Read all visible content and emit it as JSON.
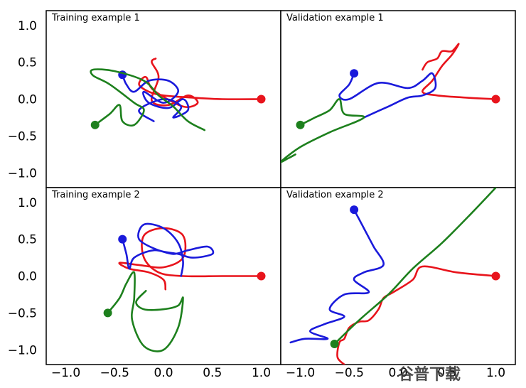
{
  "chart_data": [
    {
      "type": "line",
      "title": "Training example 1",
      "xlim": [
        -1.2,
        1.2
      ],
      "ylim": [
        -1.2,
        1.2
      ],
      "series": [
        {
          "color": "#e8141c",
          "points": [
            [
              1.0,
              0.0
            ],
            [
              0.6,
              0.0
            ],
            [
              0.3,
              0.02
            ],
            [
              0.0,
              0.05
            ],
            [
              -0.15,
              0.1
            ],
            [
              -0.25,
              0.2
            ],
            [
              -0.18,
              0.3
            ],
            [
              -0.1,
              0.12
            ],
            [
              0.2,
              -0.1
            ],
            [
              0.35,
              -0.05
            ],
            [
              0.25,
              0.05
            ],
            [
              0.05,
              -0.08
            ],
            [
              -0.12,
              -0.02
            ],
            [
              -0.05,
              0.3
            ],
            [
              -0.12,
              0.5
            ],
            [
              -0.08,
              0.55
            ]
          ]
        },
        {
          "color": "#1a1adb",
          "points": [
            [
              -0.42,
              0.33
            ],
            [
              -0.38,
              0.2
            ],
            [
              -0.3,
              0.1
            ],
            [
              -0.15,
              0.25
            ],
            [
              0.05,
              0.25
            ],
            [
              0.15,
              0.1
            ],
            [
              0.0,
              -0.05
            ],
            [
              -0.2,
              0.1
            ],
            [
              -0.15,
              -0.05
            ],
            [
              0.05,
              -0.12
            ],
            [
              0.2,
              0.0
            ],
            [
              0.25,
              -0.15
            ],
            [
              0.1,
              -0.25
            ],
            [
              0.18,
              -0.1
            ],
            [
              0.0,
              0.0
            ],
            [
              -0.25,
              -0.15
            ],
            [
              -0.1,
              -0.3
            ]
          ]
        },
        {
          "color": "#1d801d",
          "points": [
            [
              -0.7,
              -0.35
            ],
            [
              -0.55,
              -0.2
            ],
            [
              -0.45,
              -0.08
            ],
            [
              -0.42,
              -0.3
            ],
            [
              -0.3,
              -0.35
            ],
            [
              -0.2,
              -0.15
            ],
            [
              -0.3,
              -0.05
            ],
            [
              -0.55,
              0.2
            ],
            [
              -0.72,
              0.32
            ],
            [
              -0.72,
              0.4
            ],
            [
              -0.5,
              0.38
            ],
            [
              -0.2,
              0.25
            ],
            [
              -0.05,
              0.05
            ],
            [
              0.1,
              -0.1
            ],
            [
              0.25,
              -0.3
            ],
            [
              0.42,
              -0.42
            ]
          ]
        }
      ]
    },
    {
      "type": "line",
      "title": "Validation example 1",
      "xlim": [
        -1.2,
        1.2
      ],
      "ylim": [
        -1.2,
        1.2
      ],
      "series": [
        {
          "color": "#e8141c",
          "points": [
            [
              1.0,
              0.0
            ],
            [
              0.7,
              0.02
            ],
            [
              0.4,
              0.05
            ],
            [
              0.25,
              0.1
            ],
            [
              0.35,
              0.25
            ],
            [
              0.45,
              0.45
            ],
            [
              0.55,
              0.6
            ],
            [
              0.62,
              0.75
            ],
            [
              0.55,
              0.65
            ],
            [
              0.45,
              0.65
            ],
            [
              0.4,
              0.55
            ],
            [
              0.3,
              0.5
            ],
            [
              0.25,
              0.4
            ]
          ]
        },
        {
          "color": "#1a1adb",
          "points": [
            [
              -0.45,
              0.35
            ],
            [
              -0.5,
              0.2
            ],
            [
              -0.6,
              0.05
            ],
            [
              -0.5,
              0.0
            ],
            [
              -0.2,
              0.22
            ],
            [
              0.1,
              0.15
            ],
            [
              0.25,
              0.25
            ],
            [
              0.35,
              0.35
            ],
            [
              0.38,
              0.15
            ],
            [
              0.25,
              0.05
            ],
            [
              0.1,
              0.02
            ],
            [
              -0.1,
              -0.1
            ],
            [
              -0.35,
              -0.25
            ]
          ]
        },
        {
          "color": "#1d801d",
          "points": [
            [
              -1.0,
              -0.35
            ],
            [
              -0.85,
              -0.25
            ],
            [
              -0.7,
              -0.15
            ],
            [
              -0.6,
              0.0
            ],
            [
              -0.55,
              -0.2
            ],
            [
              -0.35,
              -0.25
            ],
            [
              -0.7,
              -0.45
            ],
            [
              -1.0,
              -0.65
            ],
            [
              -1.2,
              -0.85
            ],
            [
              -1.12,
              -0.8
            ],
            [
              -1.05,
              -0.75
            ]
          ]
        }
      ]
    },
    {
      "type": "line",
      "title": "Training example 2",
      "xlim": [
        -1.2,
        1.2
      ],
      "ylim": [
        -1.2,
        1.2
      ],
      "series": [
        {
          "color": "#e8141c",
          "points": [
            [
              1.0,
              0.0
            ],
            [
              0.6,
              0.0
            ],
            [
              0.2,
              0.0
            ],
            [
              -0.05,
              0.05
            ],
            [
              -0.2,
              0.25
            ],
            [
              -0.2,
              0.55
            ],
            [
              0.0,
              0.65
            ],
            [
              0.2,
              0.55
            ],
            [
              0.2,
              0.25
            ],
            [
              0.0,
              0.12
            ],
            [
              -0.25,
              0.15
            ],
            [
              -0.45,
              0.18
            ],
            [
              -0.35,
              0.1
            ],
            [
              -0.15,
              0.05
            ],
            [
              0.0,
              -0.05
            ],
            [
              0.02,
              -0.18
            ]
          ]
        },
        {
          "color": "#1a1adb",
          "points": [
            [
              -0.42,
              0.5
            ],
            [
              -0.38,
              0.3
            ],
            [
              -0.35,
              0.1
            ],
            [
              -0.3,
              0.25
            ],
            [
              -0.1,
              0.35
            ],
            [
              0.1,
              0.3
            ],
            [
              0.25,
              0.35
            ],
            [
              0.45,
              0.4
            ],
            [
              0.5,
              0.3
            ],
            [
              0.3,
              0.25
            ],
            [
              0.15,
              0.3
            ],
            [
              -0.05,
              0.35
            ],
            [
              -0.25,
              0.5
            ],
            [
              -0.2,
              0.7
            ],
            [
              0.0,
              0.65
            ],
            [
              0.15,
              0.45
            ],
            [
              0.2,
              0.2
            ],
            [
              0.18,
              0.0
            ]
          ]
        },
        {
          "color": "#1d801d",
          "points": [
            [
              -0.57,
              -0.5
            ],
            [
              -0.45,
              -0.3
            ],
            [
              -0.38,
              -0.1
            ],
            [
              -0.3,
              0.05
            ],
            [
              -0.3,
              -0.3
            ],
            [
              -0.32,
              -0.6
            ],
            [
              -0.2,
              -0.95
            ],
            [
              0.0,
              -1.0
            ],
            [
              0.15,
              -0.7
            ],
            [
              0.2,
              -0.3
            ],
            [
              0.15,
              -0.4
            ],
            [
              0.0,
              -0.45
            ],
            [
              -0.2,
              -0.45
            ],
            [
              -0.28,
              -0.35
            ],
            [
              -0.18,
              -0.2
            ]
          ]
        }
      ]
    },
    {
      "type": "line",
      "title": "Validation example 2",
      "xlim": [
        -1.2,
        1.2
      ],
      "ylim": [
        -1.2,
        1.2
      ],
      "series": [
        {
          "color": "#e8141c",
          "points": [
            [
              1.0,
              0.0
            ],
            [
              0.6,
              0.05
            ],
            [
              0.25,
              0.13
            ],
            [
              0.15,
              -0.05
            ],
            [
              -0.05,
              -0.22
            ],
            [
              -0.15,
              -0.3
            ],
            [
              -0.2,
              -0.45
            ],
            [
              -0.3,
              -0.6
            ],
            [
              -0.4,
              -0.62
            ],
            [
              -0.5,
              -0.7
            ],
            [
              -0.55,
              -0.85
            ],
            [
              -0.6,
              -0.9
            ],
            [
              -0.62,
              -1.1
            ],
            [
              -0.55,
              -1.2
            ]
          ]
        },
        {
          "color": "#1a1adb",
          "points": [
            [
              -0.45,
              0.9
            ],
            [
              -0.35,
              0.65
            ],
            [
              -0.25,
              0.4
            ],
            [
              -0.15,
              0.15
            ],
            [
              -0.35,
              0.05
            ],
            [
              -0.45,
              -0.05
            ],
            [
              -0.3,
              -0.22
            ],
            [
              -0.55,
              -0.25
            ],
            [
              -0.7,
              -0.45
            ],
            [
              -0.55,
              -0.55
            ],
            [
              -0.75,
              -0.65
            ],
            [
              -0.9,
              -0.75
            ],
            [
              -0.72,
              -0.85
            ],
            [
              -0.95,
              -0.85
            ],
            [
              -1.1,
              -0.9
            ]
          ]
        },
        {
          "color": "#1d801d",
          "points": [
            [
              -0.65,
              -0.92
            ],
            [
              -0.4,
              -0.6
            ],
            [
              -0.1,
              -0.25
            ],
            [
              0.15,
              0.1
            ],
            [
              0.45,
              0.45
            ],
            [
              0.75,
              0.85
            ],
            [
              1.0,
              1.2
            ]
          ]
        }
      ]
    }
  ],
  "axis": {
    "xticks": [
      "−1.0",
      "−0.5",
      "0.0",
      "0.5",
      "1.0"
    ],
    "xtick_values": [
      -1.0,
      -0.5,
      0.0,
      0.5,
      1.0
    ],
    "yticks": [
      "1.0",
      "0.5",
      "0.0",
      "−0.5",
      "−1.0"
    ],
    "ytick_values": [
      1.0,
      0.5,
      0.0,
      -0.5,
      -1.0
    ]
  },
  "watermark": "谷普下载"
}
